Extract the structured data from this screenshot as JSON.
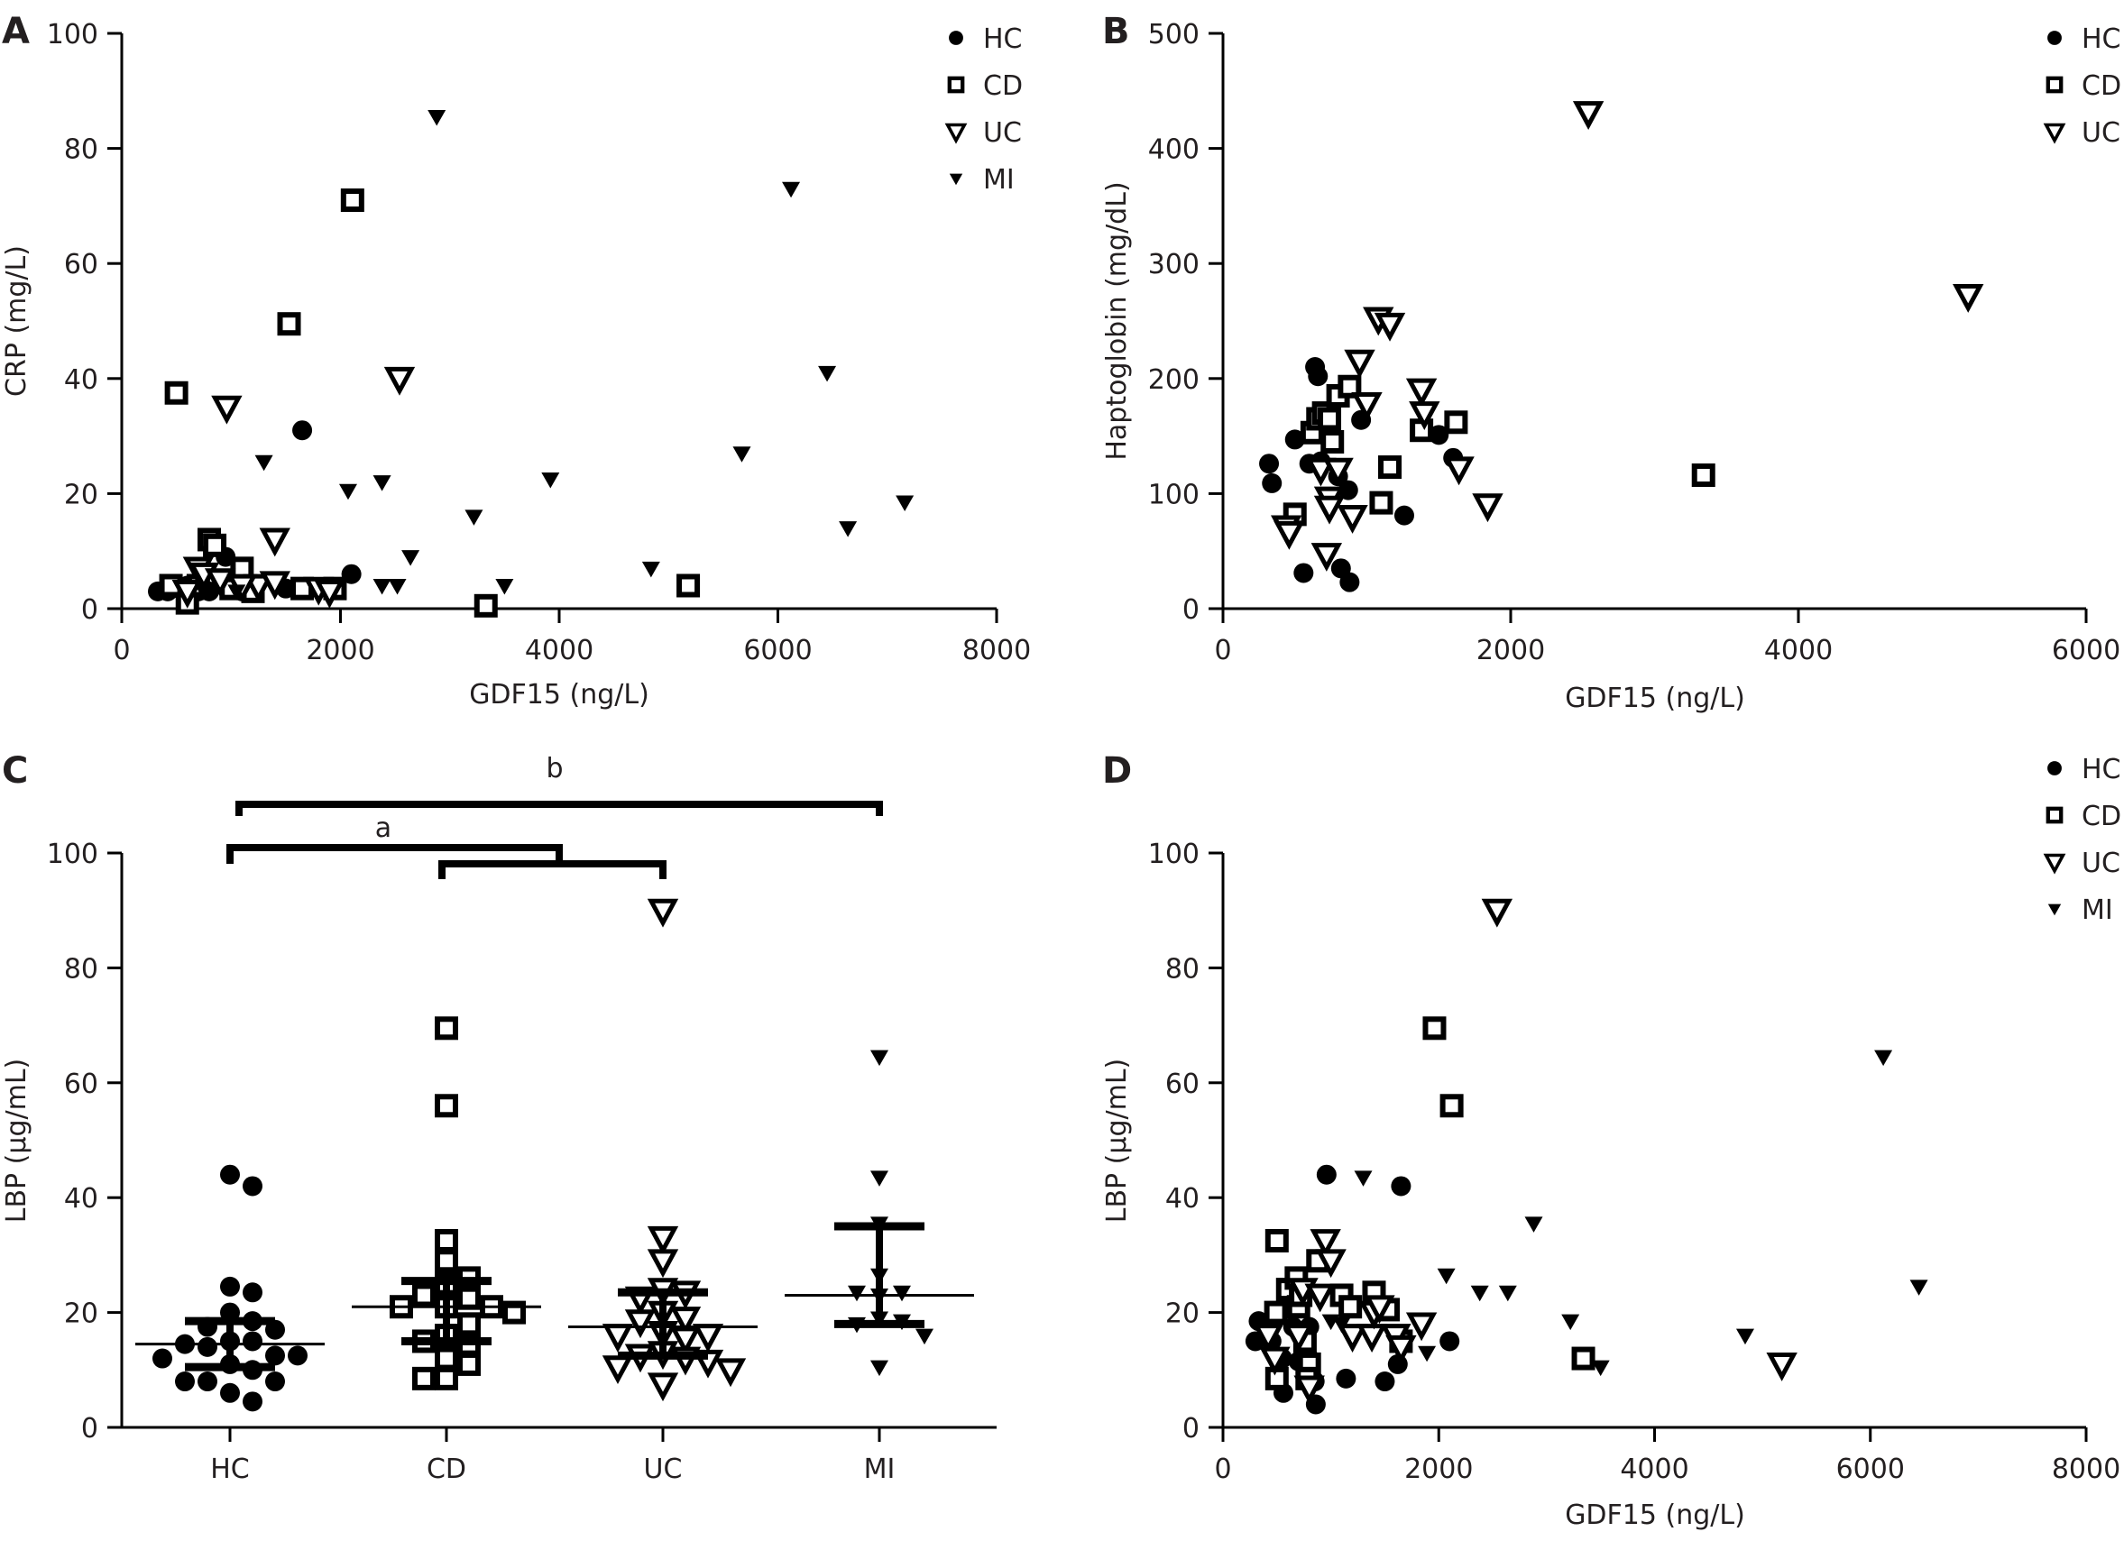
{
  "chart_data": [
    {
      "panel": "A",
      "type": "scatter",
      "title": "",
      "xlabel": "GDF15 (ng/L)",
      "ylabel": "CRP (mg/L)",
      "xlim": [
        0,
        8000
      ],
      "ylim": [
        0,
        100
      ],
      "xticks": [
        "0",
        "2000",
        "4000",
        "6000",
        "8000"
      ],
      "yticks": [
        "0",
        "20",
        "40",
        "60",
        "80",
        "100"
      ],
      "legend": [
        "HC",
        "CD",
        "UC",
        "MI"
      ],
      "legend_position": "top-right",
      "series": [
        {
          "name": "HC",
          "marker": "filled-circle",
          "points": [
            [
              330,
              3
            ],
            [
              420,
              3
            ],
            [
              520,
              3.5
            ],
            [
              600,
              4
            ],
            [
              700,
              3
            ],
            [
              950,
              9
            ],
            [
              1100,
              3
            ],
            [
              1200,
              3
            ],
            [
              1650,
              31
            ],
            [
              2100,
              6
            ],
            [
              1500,
              3.5
            ],
            [
              1700,
              3.5
            ],
            [
              800,
              3
            ]
          ]
        },
        {
          "name": "CD",
          "marker": "open-square",
          "points": [
            [
              500,
              37.5
            ],
            [
              1530,
              49.5
            ],
            [
              2110,
              71
            ],
            [
              800,
              12
            ],
            [
              850,
              11
            ],
            [
              1100,
              7
            ],
            [
              600,
              1
            ],
            [
              450,
              4
            ],
            [
              1000,
              3.5
            ],
            [
              1650,
              3.5
            ],
            [
              1950,
              3.5
            ],
            [
              3330,
              0.5
            ],
            [
              5180,
              4
            ],
            [
              700,
              4
            ],
            [
              1200,
              3
            ]
          ]
        },
        {
          "name": "UC",
          "marker": "open-triangle-down",
          "points": [
            [
              960,
              35
            ],
            [
              2540,
              40
            ],
            [
              1400,
              12
            ],
            [
              700,
              7
            ],
            [
              750,
              6
            ],
            [
              900,
              5
            ],
            [
              1250,
              4
            ],
            [
              1400,
              4.5
            ],
            [
              1800,
              3.5
            ],
            [
              1900,
              3
            ],
            [
              600,
              3
            ],
            [
              1100,
              4
            ]
          ]
        },
        {
          "name": "MI",
          "marker": "filled-triangle-down",
          "points": [
            [
              2880,
              85.5
            ],
            [
              6120,
              73
            ],
            [
              6450,
              41
            ],
            [
              5670,
              27
            ],
            [
              1300,
              25.5
            ],
            [
              2070,
              20.5
            ],
            [
              2380,
              22
            ],
            [
              3920,
              22.5
            ],
            [
              3220,
              16
            ],
            [
              7160,
              18.5
            ],
            [
              6640,
              14
            ],
            [
              2640,
              9
            ],
            [
              4840,
              7
            ],
            [
              2380,
              4
            ],
            [
              2520,
              4
            ],
            [
              3500,
              4
            ],
            [
              750,
              3
            ],
            [
              1050,
              3
            ]
          ]
        }
      ]
    },
    {
      "panel": "B",
      "type": "scatter",
      "title": "",
      "xlabel": "GDF15 (ng/L)",
      "ylabel": "Haptoglobin (mg/dL)",
      "xlim": [
        0,
        6000
      ],
      "ylim": [
        0,
        500
      ],
      "xticks": [
        "0",
        "2000",
        "4000",
        "6000"
      ],
      "yticks": [
        "0",
        "100",
        "200",
        "300",
        "400",
        "500"
      ],
      "legend": [
        "HC",
        "CD",
        "UC"
      ],
      "legend_position": "top-right",
      "series": [
        {
          "name": "HC",
          "marker": "filled-circle",
          "points": [
            [
              320,
              126
            ],
            [
              340,
              109
            ],
            [
              500,
              147
            ],
            [
              560,
              31
            ],
            [
              600,
              126
            ],
            [
              640,
              210
            ],
            [
              660,
              202
            ],
            [
              680,
              128
            ],
            [
              820,
              35
            ],
            [
              800,
              115
            ],
            [
              870,
              103
            ],
            [
              880,
              23
            ],
            [
              960,
              164
            ],
            [
              1260,
              81
            ],
            [
              1500,
              151
            ],
            [
              1600,
              131
            ]
          ]
        },
        {
          "name": "CD",
          "marker": "open-square",
          "points": [
            [
              500,
              82
            ],
            [
              620,
              153
            ],
            [
              660,
              165
            ],
            [
              700,
              170
            ],
            [
              740,
              165
            ],
            [
              760,
              145
            ],
            [
              800,
              185
            ],
            [
              880,
              193
            ],
            [
              1100,
              92
            ],
            [
              1160,
              123
            ],
            [
              1380,
              155
            ],
            [
              1620,
              162
            ],
            [
              3340,
              116
            ]
          ]
        },
        {
          "name": "UC",
          "marker": "open-triangle-down",
          "points": [
            [
              440,
              71
            ],
            [
              460,
              66
            ],
            [
              680,
              121
            ],
            [
              720,
              47
            ],
            [
              740,
              96
            ],
            [
              740,
              88
            ],
            [
              800,
              121
            ],
            [
              900,
              80
            ],
            [
              950,
              215
            ],
            [
              1000,
              178
            ],
            [
              1080,
              252
            ],
            [
              1160,
              247
            ],
            [
              1380,
              190
            ],
            [
              1400,
              170
            ],
            [
              1640,
              122
            ],
            [
              1840,
              90
            ],
            [
              2540,
              431
            ],
            [
              5180,
              272
            ]
          ]
        }
      ]
    },
    {
      "panel": "C",
      "type": "scatter",
      "title": "",
      "xlabel": "",
      "ylabel": "LBP (µg/mL)",
      "categories": [
        "HC",
        "CD",
        "UC",
        "MI"
      ],
      "ylim": [
        0,
        100
      ],
      "yticks": [
        "0",
        "20",
        "40",
        "60",
        "80",
        "100"
      ],
      "summary": [
        {
          "name": "HC",
          "median": 14.5,
          "q1": 10.5,
          "q3": 18.5
        },
        {
          "name": "CD",
          "median": 21,
          "q1": 15,
          "q3": 25.5
        },
        {
          "name": "UC",
          "median": 17.5,
          "q1": 12.5,
          "q3": 23.5
        },
        {
          "name": "MI",
          "median": 23,
          "q1": 18,
          "q3": 35
        }
      ],
      "series": [
        {
          "name": "HC",
          "marker": "filled-circle",
          "values": [
            44,
            42,
            24.5,
            23.5,
            20,
            18.5,
            17.5,
            17,
            15,
            15,
            14.5,
            14,
            12.5,
            12.5,
            12,
            11,
            10,
            8,
            8,
            8,
            6,
            4.5
          ]
        },
        {
          "name": "CD",
          "marker": "open-square",
          "values": [
            69.5,
            56,
            32.5,
            29,
            26,
            25,
            23,
            22.5,
            21,
            21,
            21,
            20,
            18,
            16,
            15,
            14.5,
            12,
            11,
            8.5,
            8.5
          ]
        },
        {
          "name": "UC",
          "marker": "open-triangle-down",
          "values": [
            90,
            33,
            29,
            24,
            23.5,
            22.5,
            20,
            19,
            18.5,
            16.5,
            16,
            16,
            15.5,
            13,
            12.5,
            12,
            11.5,
            10.5,
            10,
            7.5
          ]
        },
        {
          "name": "MI",
          "marker": "filled-triangle-down",
          "values": [
            64.5,
            43.5,
            35.5,
            26.5,
            23.5,
            23.5,
            23,
            19,
            18.5,
            18,
            16,
            10.5
          ]
        }
      ],
      "significance": [
        {
          "label": "b",
          "from": "HC",
          "to": "MI"
        },
        {
          "label": "a",
          "from": "HC",
          "to": "CD+UC"
        }
      ]
    },
    {
      "panel": "D",
      "type": "scatter",
      "title": "",
      "xlabel": "GDF15 (ng/L)",
      "ylabel": "LBP (µg/mL)",
      "xlim": [
        0,
        8000
      ],
      "ylim": [
        0,
        100
      ],
      "xticks": [
        "0",
        "2000",
        "4000",
        "6000",
        "8000"
      ],
      "yticks": [
        "0",
        "20",
        "40",
        "60",
        "80",
        "100"
      ],
      "legend": [
        "HC",
        "CD",
        "UC",
        "MI"
      ],
      "legend_position": "top-right",
      "series": [
        {
          "name": "HC",
          "marker": "filled-circle",
          "points": [
            [
              330,
              18.5
            ],
            [
              300,
              15
            ],
            [
              450,
              15
            ],
            [
              550,
              12
            ],
            [
              560,
              6
            ],
            [
              700,
              11.5
            ],
            [
              800,
              12
            ],
            [
              800,
              17.5
            ],
            [
              850,
              8
            ],
            [
              860,
              4
            ],
            [
              960,
              44
            ],
            [
              1140,
              8.5
            ],
            [
              1500,
              8
            ],
            [
              1620,
              11
            ],
            [
              1650,
              42
            ],
            [
              2100,
              15
            ],
            [
              650,
              17.5
            ]
          ]
        },
        {
          "name": "CD",
          "marker": "open-square",
          "points": [
            [
              500,
              32.5
            ],
            [
              490,
              20
            ],
            [
              500,
              8.5
            ],
            [
              600,
              24
            ],
            [
              680,
              26
            ],
            [
              700,
              21
            ],
            [
              720,
              23
            ],
            [
              760,
              15
            ],
            [
              800,
              11
            ],
            [
              780,
              8.5
            ],
            [
              880,
              29
            ],
            [
              1100,
              23
            ],
            [
              1180,
              21
            ],
            [
              1400,
              23.5
            ],
            [
              1530,
              20.5
            ],
            [
              1650,
              15
            ],
            [
              1960,
              69.5
            ],
            [
              2120,
              56
            ],
            [
              3340,
              12
            ]
          ]
        },
        {
          "name": "UC",
          "marker": "open-triangle-down",
          "points": [
            [
              420,
              16
            ],
            [
              480,
              12
            ],
            [
              700,
              16
            ],
            [
              740,
              24
            ],
            [
              900,
              23
            ],
            [
              950,
              32.5
            ],
            [
              1000,
              29
            ],
            [
              1200,
              16
            ],
            [
              1380,
              16
            ],
            [
              1400,
              20
            ],
            [
              1450,
              21
            ],
            [
              1600,
              16
            ],
            [
              1650,
              14
            ],
            [
              1840,
              18
            ],
            [
              2540,
              90
            ],
            [
              5180,
              11
            ],
            [
              800,
              7
            ]
          ]
        },
        {
          "name": "MI",
          "marker": "filled-triangle-down",
          "points": [
            [
              1300,
              43.5
            ],
            [
              2070,
              26.5
            ],
            [
              2380,
              23.5
            ],
            [
              2640,
              23.5
            ],
            [
              2880,
              35.5
            ],
            [
              3220,
              18.5
            ],
            [
              3500,
              10.5
            ],
            [
              4840,
              16
            ],
            [
              6120,
              64.5
            ],
            [
              6450,
              24.5
            ],
            [
              1000,
              18.5
            ],
            [
              1100,
              18
            ],
            [
              1890,
              13
            ]
          ]
        }
      ]
    }
  ]
}
